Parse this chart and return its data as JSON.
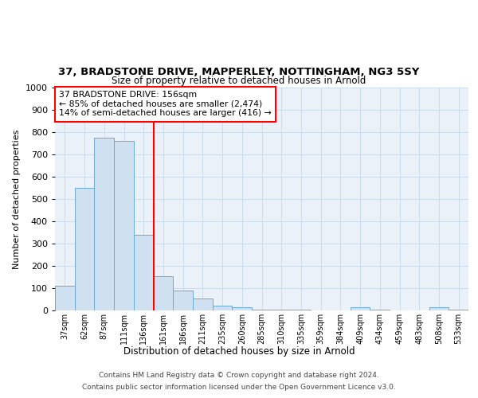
{
  "title1": "37, BRADSTONE DRIVE, MAPPERLEY, NOTTINGHAM, NG3 5SY",
  "title2": "Size of property relative to detached houses in Arnold",
  "xlabel": "Distribution of detached houses by size in Arnold",
  "ylabel": "Number of detached properties",
  "categories": [
    "37sqm",
    "62sqm",
    "87sqm",
    "111sqm",
    "136sqm",
    "161sqm",
    "186sqm",
    "211sqm",
    "235sqm",
    "260sqm",
    "285sqm",
    "310sqm",
    "335sqm",
    "359sqm",
    "384sqm",
    "409sqm",
    "434sqm",
    "459sqm",
    "483sqm",
    "508sqm",
    "533sqm"
  ],
  "values": [
    110,
    550,
    775,
    760,
    340,
    155,
    90,
    55,
    20,
    15,
    5,
    3,
    2,
    1,
    0,
    15,
    2,
    1,
    1,
    15,
    2
  ],
  "bar_color": "#cfe0f0",
  "bar_edge_color": "#6aaad4",
  "annotation_text1": "37 BRADSTONE DRIVE: 156sqm",
  "annotation_text2": "← 85% of detached houses are smaller (2,474)",
  "annotation_text3": "14% of semi-detached houses are larger (416) →",
  "ylim": [
    0,
    1000
  ],
  "yticks": [
    0,
    100,
    200,
    300,
    400,
    500,
    600,
    700,
    800,
    900,
    1000
  ],
  "footer1": "Contains HM Land Registry data © Crown copyright and database right 2024.",
  "footer2": "Contains public sector information licensed under the Open Government Licence v3.0.",
  "bg_color": "#eaf1f8",
  "plot_bg": "#ffffff",
  "grid_color": "#c8d8e8"
}
